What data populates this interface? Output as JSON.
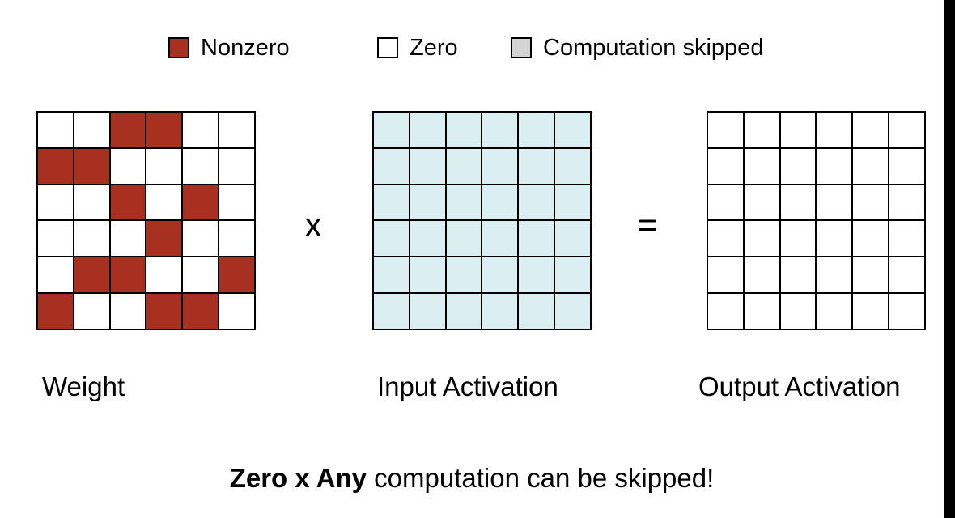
{
  "colors": {
    "nonzero": "#a83020",
    "zero": "#ffffff",
    "skipped": "#d4d4d4",
    "input": "#dbeef1",
    "output": "#ffffff"
  },
  "legend": {
    "nonzero_label": "Nonzero",
    "zero_label": "Zero",
    "skipped_label": "Computation skipped"
  },
  "weight": {
    "pattern": [
      [
        0,
        0,
        1,
        1,
        0,
        0
      ],
      [
        1,
        1,
        0,
        0,
        0,
        0
      ],
      [
        0,
        0,
        1,
        0,
        1,
        0
      ],
      [
        0,
        0,
        0,
        1,
        0,
        0
      ],
      [
        0,
        1,
        1,
        0,
        0,
        1
      ],
      [
        1,
        0,
        0,
        1,
        1,
        0
      ]
    ]
  },
  "input_activation": {
    "rows": 6,
    "cols": 6
  },
  "output_activation": {
    "rows": 6,
    "cols": 6
  },
  "operators": {
    "multiply": "x",
    "equals": "="
  },
  "captions": {
    "weight": "Weight",
    "input": "Input Activation",
    "output": "Output Activation"
  },
  "footer": {
    "bold_text": "Zero x Any",
    "rest_text": " computation can be skipped!"
  }
}
